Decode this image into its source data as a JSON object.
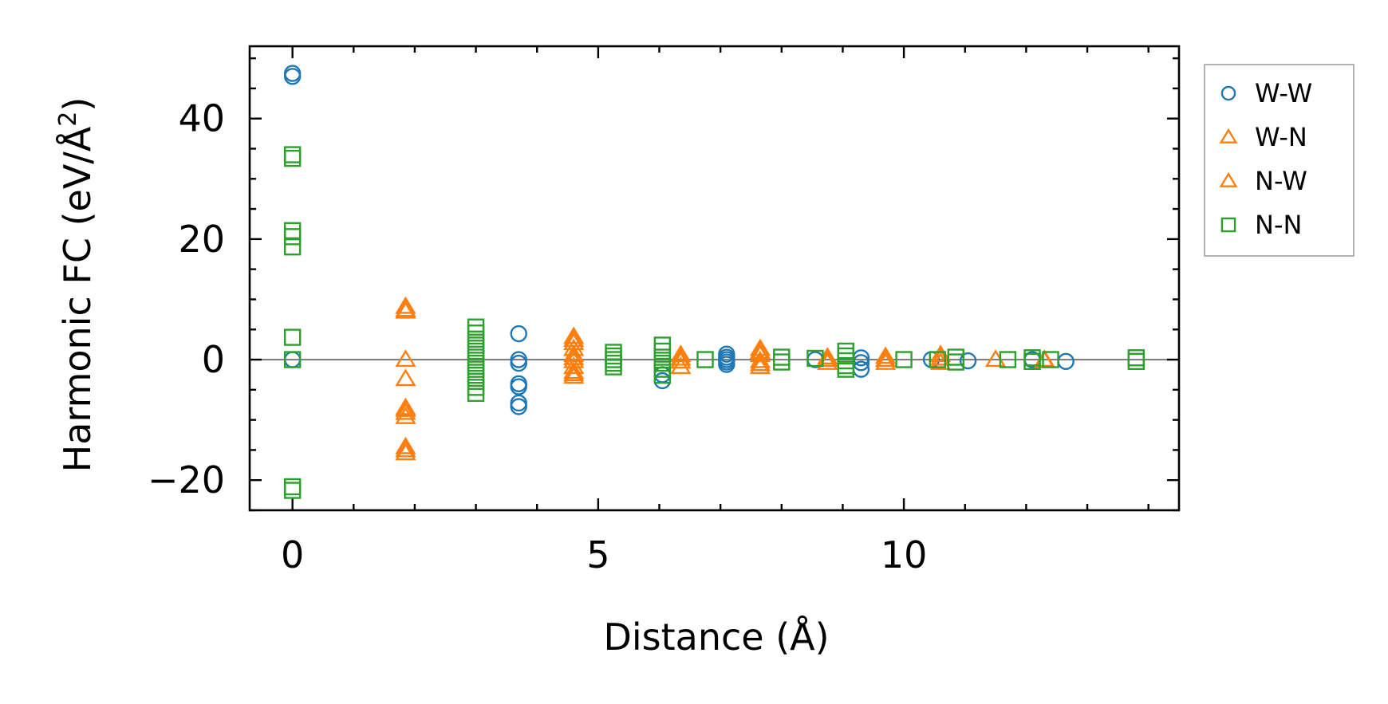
{
  "chart_data": {
    "type": "scatter",
    "xlabel": "Distance (Å)",
    "ylabel_main": "Harmonic FC (eV/Å",
    "ylabel_sup": "2",
    "ylabel_close": ")",
    "xlim": [
      -0.7,
      14.5
    ],
    "ylim": [
      -25,
      52
    ],
    "xticks": [
      0,
      5,
      10
    ],
    "xtick_labels": [
      "0",
      "5",
      "10"
    ],
    "yticks": [
      -20,
      0,
      20,
      40
    ],
    "ytick_labels": [
      "−20",
      "0",
      "20",
      "40"
    ],
    "zero_line": 0,
    "legend_position": "outside-right-top",
    "series": [
      {
        "name": "W-W",
        "marker": "circle",
        "color": "#1f77b4",
        "points": [
          [
            0,
            47.5
          ],
          [
            0,
            47.0
          ],
          [
            0,
            0
          ],
          [
            3.7,
            4.3
          ],
          [
            3.7,
            0
          ],
          [
            3.7,
            -0.6
          ],
          [
            3.7,
            -4.0
          ],
          [
            3.7,
            -4.5
          ],
          [
            3.7,
            -7.2
          ],
          [
            3.7,
            -7.8
          ],
          [
            6.05,
            -2.5
          ],
          [
            6.05,
            -3.5
          ],
          [
            7.1,
            0.9
          ],
          [
            7.1,
            0.4
          ],
          [
            7.1,
            0
          ],
          [
            7.1,
            -0.4
          ],
          [
            7.1,
            -0.8
          ],
          [
            8.55,
            0
          ],
          [
            9.3,
            0.3
          ],
          [
            9.3,
            -0.5
          ],
          [
            9.3,
            -1.6
          ],
          [
            10.45,
            0
          ],
          [
            11.05,
            -0.2
          ],
          [
            12.1,
            0
          ],
          [
            12.65,
            -0.3
          ]
        ]
      },
      {
        "name": "W-N",
        "marker": "triangle",
        "color": "#ff7f0e",
        "points": [
          [
            1.85,
            8.8
          ],
          [
            1.85,
            8.0
          ],
          [
            1.85,
            0
          ],
          [
            1.85,
            -3.2
          ],
          [
            1.85,
            -8.0
          ],
          [
            1.85,
            -8.8
          ],
          [
            1.85,
            -9.5
          ],
          [
            1.85,
            -14.5
          ],
          [
            1.85,
            -15.5
          ],
          [
            4.6,
            3.8
          ],
          [
            4.6,
            2.8
          ],
          [
            4.6,
            1.8
          ],
          [
            4.6,
            0.8
          ],
          [
            4.6,
            -0.2
          ],
          [
            4.6,
            -1.2
          ],
          [
            4.6,
            -2.0
          ],
          [
            4.6,
            -2.8
          ],
          [
            6.35,
            0.8
          ],
          [
            6.35,
            -0.3
          ],
          [
            6.35,
            -1.2
          ],
          [
            7.65,
            1.8
          ],
          [
            7.65,
            0.8
          ],
          [
            7.65,
            -0.2
          ],
          [
            7.65,
            -1.2
          ],
          [
            8.75,
            0.4
          ],
          [
            8.75,
            -0.5
          ],
          [
            9.7,
            0.5
          ],
          [
            9.7,
            -0.5
          ],
          [
            10.6,
            0.8
          ],
          [
            10.6,
            -0.5
          ],
          [
            11.5,
            0
          ],
          [
            12.3,
            0
          ]
        ]
      },
      {
        "name": "N-W",
        "marker": "triangle",
        "color": "#ff7f0e",
        "points": [
          [
            1.85,
            8.3
          ],
          [
            1.85,
            -8.3
          ],
          [
            1.85,
            -15.0
          ],
          [
            4.6,
            3.3
          ],
          [
            4.6,
            0.3
          ],
          [
            4.6,
            -2.4
          ],
          [
            6.35,
            0.2
          ],
          [
            7.65,
            1.3
          ],
          [
            7.65,
            -0.7
          ],
          [
            8.75,
            0
          ],
          [
            9.7,
            0
          ],
          [
            10.6,
            0.2
          ],
          [
            12.3,
            -0.2
          ]
        ]
      },
      {
        "name": "N-N",
        "marker": "square",
        "color": "#2ca02c",
        "points": [
          [
            0,
            34.0
          ],
          [
            0,
            33.4
          ],
          [
            0,
            21.4
          ],
          [
            0,
            20.4
          ],
          [
            0,
            18.7
          ],
          [
            0,
            3.7
          ],
          [
            0,
            0
          ],
          [
            0,
            -21.1
          ],
          [
            0,
            -21.7
          ],
          [
            3.0,
            5.4
          ],
          [
            3.0,
            4.4
          ],
          [
            3.0,
            3.4
          ],
          [
            3.0,
            2.4
          ],
          [
            3.0,
            1.4
          ],
          [
            3.0,
            0.4
          ],
          [
            3.0,
            -0.6
          ],
          [
            3.0,
            -1.6
          ],
          [
            3.0,
            -2.6
          ],
          [
            3.0,
            -3.6
          ],
          [
            3.0,
            -4.6
          ],
          [
            3.0,
            -5.6
          ],
          [
            5.25,
            1.2
          ],
          [
            5.25,
            0.6
          ],
          [
            5.25,
            0
          ],
          [
            5.25,
            -0.6
          ],
          [
            5.25,
            -1.2
          ],
          [
            6.05,
            2.4
          ],
          [
            6.05,
            1.4
          ],
          [
            6.05,
            0.4
          ],
          [
            6.05,
            -0.6
          ],
          [
            6.05,
            -1.6
          ],
          [
            6.05,
            -2.6
          ],
          [
            6.75,
            0
          ],
          [
            8.0,
            0.4
          ],
          [
            8.0,
            -0.4
          ],
          [
            8.55,
            0.2
          ],
          [
            9.05,
            1.4
          ],
          [
            9.05,
            0.6
          ],
          [
            9.05,
            -0.2
          ],
          [
            9.05,
            -1.0
          ],
          [
            9.05,
            -1.6
          ],
          [
            10.0,
            0
          ],
          [
            10.55,
            0
          ],
          [
            10.85,
            0.4
          ],
          [
            10.85,
            -0.4
          ],
          [
            11.7,
            0
          ],
          [
            12.1,
            0.3
          ],
          [
            12.1,
            -0.3
          ],
          [
            12.4,
            0
          ],
          [
            13.8,
            0.3
          ],
          [
            13.8,
            -0.3
          ]
        ]
      }
    ]
  }
}
